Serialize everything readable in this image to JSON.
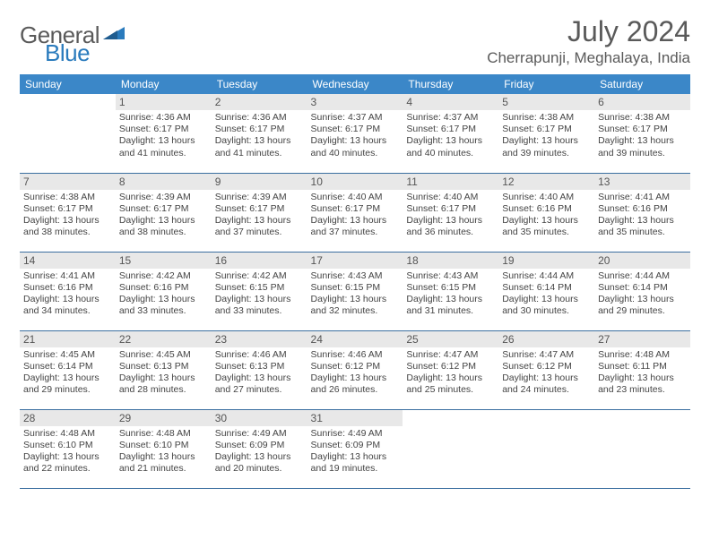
{
  "brand": {
    "general": "General",
    "blue": "Blue"
  },
  "title": "July 2024",
  "location": "Cherrapunji, Meghalaya, India",
  "colors": {
    "header_bg": "#3b87c8",
    "header_text": "#ffffff",
    "row_border": "#3b6fa0",
    "daynum_bg": "#e8e8e8",
    "text": "#444444",
    "title_text": "#5a5a5a",
    "brand_blue": "#2a7bbd"
  },
  "weekday_labels": [
    "Sunday",
    "Monday",
    "Tuesday",
    "Wednesday",
    "Thursday",
    "Friday",
    "Saturday"
  ],
  "weeks": [
    [
      {
        "day": "",
        "sunrise": "",
        "sunset": "",
        "daylight1": "",
        "daylight2": ""
      },
      {
        "day": "1",
        "sunrise": "Sunrise: 4:36 AM",
        "sunset": "Sunset: 6:17 PM",
        "daylight1": "Daylight: 13 hours",
        "daylight2": "and 41 minutes."
      },
      {
        "day": "2",
        "sunrise": "Sunrise: 4:36 AM",
        "sunset": "Sunset: 6:17 PM",
        "daylight1": "Daylight: 13 hours",
        "daylight2": "and 41 minutes."
      },
      {
        "day": "3",
        "sunrise": "Sunrise: 4:37 AM",
        "sunset": "Sunset: 6:17 PM",
        "daylight1": "Daylight: 13 hours",
        "daylight2": "and 40 minutes."
      },
      {
        "day": "4",
        "sunrise": "Sunrise: 4:37 AM",
        "sunset": "Sunset: 6:17 PM",
        "daylight1": "Daylight: 13 hours",
        "daylight2": "and 40 minutes."
      },
      {
        "day": "5",
        "sunrise": "Sunrise: 4:38 AM",
        "sunset": "Sunset: 6:17 PM",
        "daylight1": "Daylight: 13 hours",
        "daylight2": "and 39 minutes."
      },
      {
        "day": "6",
        "sunrise": "Sunrise: 4:38 AM",
        "sunset": "Sunset: 6:17 PM",
        "daylight1": "Daylight: 13 hours",
        "daylight2": "and 39 minutes."
      }
    ],
    [
      {
        "day": "7",
        "sunrise": "Sunrise: 4:38 AM",
        "sunset": "Sunset: 6:17 PM",
        "daylight1": "Daylight: 13 hours",
        "daylight2": "and 38 minutes."
      },
      {
        "day": "8",
        "sunrise": "Sunrise: 4:39 AM",
        "sunset": "Sunset: 6:17 PM",
        "daylight1": "Daylight: 13 hours",
        "daylight2": "and 38 minutes."
      },
      {
        "day": "9",
        "sunrise": "Sunrise: 4:39 AM",
        "sunset": "Sunset: 6:17 PM",
        "daylight1": "Daylight: 13 hours",
        "daylight2": "and 37 minutes."
      },
      {
        "day": "10",
        "sunrise": "Sunrise: 4:40 AM",
        "sunset": "Sunset: 6:17 PM",
        "daylight1": "Daylight: 13 hours",
        "daylight2": "and 37 minutes."
      },
      {
        "day": "11",
        "sunrise": "Sunrise: 4:40 AM",
        "sunset": "Sunset: 6:17 PM",
        "daylight1": "Daylight: 13 hours",
        "daylight2": "and 36 minutes."
      },
      {
        "day": "12",
        "sunrise": "Sunrise: 4:40 AM",
        "sunset": "Sunset: 6:16 PM",
        "daylight1": "Daylight: 13 hours",
        "daylight2": "and 35 minutes."
      },
      {
        "day": "13",
        "sunrise": "Sunrise: 4:41 AM",
        "sunset": "Sunset: 6:16 PM",
        "daylight1": "Daylight: 13 hours",
        "daylight2": "and 35 minutes."
      }
    ],
    [
      {
        "day": "14",
        "sunrise": "Sunrise: 4:41 AM",
        "sunset": "Sunset: 6:16 PM",
        "daylight1": "Daylight: 13 hours",
        "daylight2": "and 34 minutes."
      },
      {
        "day": "15",
        "sunrise": "Sunrise: 4:42 AM",
        "sunset": "Sunset: 6:16 PM",
        "daylight1": "Daylight: 13 hours",
        "daylight2": "and 33 minutes."
      },
      {
        "day": "16",
        "sunrise": "Sunrise: 4:42 AM",
        "sunset": "Sunset: 6:15 PM",
        "daylight1": "Daylight: 13 hours",
        "daylight2": "and 33 minutes."
      },
      {
        "day": "17",
        "sunrise": "Sunrise: 4:43 AM",
        "sunset": "Sunset: 6:15 PM",
        "daylight1": "Daylight: 13 hours",
        "daylight2": "and 32 minutes."
      },
      {
        "day": "18",
        "sunrise": "Sunrise: 4:43 AM",
        "sunset": "Sunset: 6:15 PM",
        "daylight1": "Daylight: 13 hours",
        "daylight2": "and 31 minutes."
      },
      {
        "day": "19",
        "sunrise": "Sunrise: 4:44 AM",
        "sunset": "Sunset: 6:14 PM",
        "daylight1": "Daylight: 13 hours",
        "daylight2": "and 30 minutes."
      },
      {
        "day": "20",
        "sunrise": "Sunrise: 4:44 AM",
        "sunset": "Sunset: 6:14 PM",
        "daylight1": "Daylight: 13 hours",
        "daylight2": "and 29 minutes."
      }
    ],
    [
      {
        "day": "21",
        "sunrise": "Sunrise: 4:45 AM",
        "sunset": "Sunset: 6:14 PM",
        "daylight1": "Daylight: 13 hours",
        "daylight2": "and 29 minutes."
      },
      {
        "day": "22",
        "sunrise": "Sunrise: 4:45 AM",
        "sunset": "Sunset: 6:13 PM",
        "daylight1": "Daylight: 13 hours",
        "daylight2": "and 28 minutes."
      },
      {
        "day": "23",
        "sunrise": "Sunrise: 4:46 AM",
        "sunset": "Sunset: 6:13 PM",
        "daylight1": "Daylight: 13 hours",
        "daylight2": "and 27 minutes."
      },
      {
        "day": "24",
        "sunrise": "Sunrise: 4:46 AM",
        "sunset": "Sunset: 6:12 PM",
        "daylight1": "Daylight: 13 hours",
        "daylight2": "and 26 minutes."
      },
      {
        "day": "25",
        "sunrise": "Sunrise: 4:47 AM",
        "sunset": "Sunset: 6:12 PM",
        "daylight1": "Daylight: 13 hours",
        "daylight2": "and 25 minutes."
      },
      {
        "day": "26",
        "sunrise": "Sunrise: 4:47 AM",
        "sunset": "Sunset: 6:12 PM",
        "daylight1": "Daylight: 13 hours",
        "daylight2": "and 24 minutes."
      },
      {
        "day": "27",
        "sunrise": "Sunrise: 4:48 AM",
        "sunset": "Sunset: 6:11 PM",
        "daylight1": "Daylight: 13 hours",
        "daylight2": "and 23 minutes."
      }
    ],
    [
      {
        "day": "28",
        "sunrise": "Sunrise: 4:48 AM",
        "sunset": "Sunset: 6:10 PM",
        "daylight1": "Daylight: 13 hours",
        "daylight2": "and 22 minutes."
      },
      {
        "day": "29",
        "sunrise": "Sunrise: 4:48 AM",
        "sunset": "Sunset: 6:10 PM",
        "daylight1": "Daylight: 13 hours",
        "daylight2": "and 21 minutes."
      },
      {
        "day": "30",
        "sunrise": "Sunrise: 4:49 AM",
        "sunset": "Sunset: 6:09 PM",
        "daylight1": "Daylight: 13 hours",
        "daylight2": "and 20 minutes."
      },
      {
        "day": "31",
        "sunrise": "Sunrise: 4:49 AM",
        "sunset": "Sunset: 6:09 PM",
        "daylight1": "Daylight: 13 hours",
        "daylight2": "and 19 minutes."
      },
      {
        "day": "",
        "sunrise": "",
        "sunset": "",
        "daylight1": "",
        "daylight2": ""
      },
      {
        "day": "",
        "sunrise": "",
        "sunset": "",
        "daylight1": "",
        "daylight2": ""
      },
      {
        "day": "",
        "sunrise": "",
        "sunset": "",
        "daylight1": "",
        "daylight2": ""
      }
    ]
  ]
}
